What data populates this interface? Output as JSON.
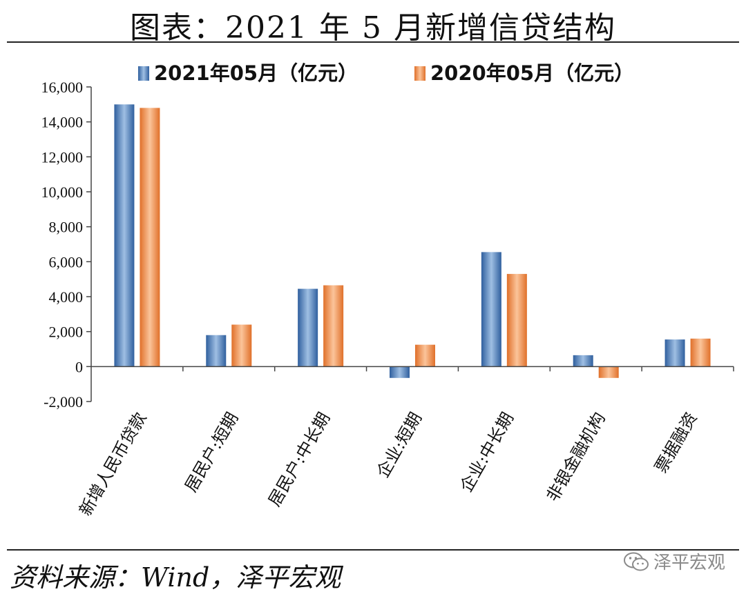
{
  "page": {
    "title": "图表：2021 年 5 月新增信贷结构",
    "source": "资料来源：Wind，泽平宏观",
    "watermark": "泽平宏观"
  },
  "colors": {
    "series_2021": "#4a7fc1",
    "series_2020": "#f28a45"
  },
  "chart_data": {
    "type": "bar",
    "title": "",
    "xlabel": "",
    "ylabel": "",
    "ylim": [
      -2000,
      16000
    ],
    "yticks": [
      -2000,
      0,
      2000,
      4000,
      6000,
      8000,
      10000,
      12000,
      14000,
      16000
    ],
    "ytick_labels": [
      "-2,000",
      "0",
      "2,000",
      "4,000",
      "6,000",
      "8,000",
      "10,000",
      "12,000",
      "14,000",
      "16,000"
    ],
    "categories": [
      "新增人民币贷款",
      "居民户:短期",
      "居民户:中长期",
      "企业:短期",
      "企业:中长期",
      "非银金融机构",
      "票据融资"
    ],
    "series": [
      {
        "name": "2021年05月（亿元）",
        "values": [
          15000,
          1800,
          4450,
          -650,
          6550,
          650,
          1550
        ]
      },
      {
        "name": "2020年05月（亿元）",
        "values": [
          14800,
          2400,
          4650,
          1250,
          5300,
          -650,
          1600
        ]
      }
    ],
    "legend": "top",
    "grid": false
  }
}
